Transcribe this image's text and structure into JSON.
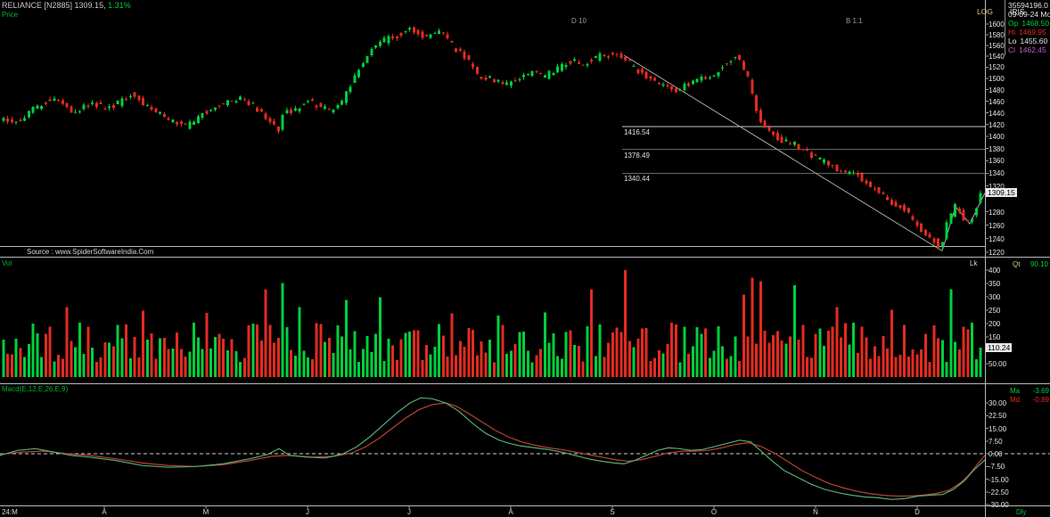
{
  "header": {
    "symbol_line": "RELIANCE [N2885] 1309.15,",
    "change": "1.31%",
    "panel_label": "Price"
  },
  "top_right": {
    "scale_type": "LOG",
    "template": "IRIS",
    "info": {
      "volume": "35594196.0",
      "date": "09-09-24 Mo",
      "op_label": "Op",
      "op": "1468.50",
      "hi_label": "Hi",
      "hi": "1469.95",
      "lo_label": "Lo",
      "lo": "1455.60",
      "cl_label": "Cl",
      "cl": "1462.45"
    }
  },
  "annotations": {
    "left": "D 10",
    "right": "B 1:1"
  },
  "source_line": "Source : www.SpiderSoftwareIndia.Com",
  "price_panel": {
    "last_label": "1309.15"
  },
  "volume_panel": {
    "label": "Vol",
    "unit": "Lk",
    "qt_label": "Qt",
    "qt_value": "90.10",
    "last_label": "110.24"
  },
  "macd_panel": {
    "label": "Macd(E,12,E,26,E,9)",
    "ma_label": "Ma",
    "ma_value": "-3.69",
    "md_label": "Md",
    "md_value": "-0.89"
  },
  "colors": {
    "up": "#00d03c",
    "down": "#e42b20",
    "macd_line": "#55aa77",
    "signal_line": "#b8432f",
    "accent_yellow": "#d8cc7c",
    "magenta": "#c060c0",
    "axis_text": "#e4e4e4",
    "grid": "#b8b8b8",
    "dim_text": "#9a9a9a",
    "green_text": "#00b434"
  },
  "chart_data": {
    "type": "candlestick",
    "title": "RELIANCE [N2885] daily candlestick with volume and MACD",
    "price": {
      "scale": "log",
      "ylim": [
        1220,
        1600
      ],
      "tick_step": 20,
      "ticks": [
        "1600",
        "1580",
        "1560",
        "1540",
        "1520",
        "1500",
        "1480",
        "1460",
        "1440",
        "1420",
        "1400",
        "1380",
        "1360",
        "1340",
        "1320",
        "1280",
        "1260",
        "1240",
        "1220"
      ],
      "last_price": 1309.15,
      "levels": [
        1416.54,
        1378.49,
        1340.44
      ],
      "level_labels": [
        "1416.54",
        "1378.49",
        "1340.44"
      ],
      "anchors": [
        [
          0,
          1432
        ],
        [
          18,
          1420
        ],
        [
          40,
          1447
        ],
        [
          62,
          1468
        ],
        [
          85,
          1442
        ],
        [
          105,
          1456
        ],
        [
          128,
          1448
        ],
        [
          148,
          1472
        ],
        [
          168,
          1452
        ],
        [
          190,
          1430
        ],
        [
          210,
          1415
        ],
        [
          232,
          1442
        ],
        [
          252,
          1456
        ],
        [
          272,
          1466
        ],
        [
          290,
          1450
        ],
        [
          305,
          1424
        ],
        [
          316,
          1408
        ],
        [
          322,
          1452
        ],
        [
          330,
          1438
        ],
        [
          345,
          1462
        ],
        [
          360,
          1452
        ],
        [
          375,
          1444
        ],
        [
          388,
          1462
        ],
        [
          402,
          1512
        ],
        [
          418,
          1552
        ],
        [
          432,
          1568
        ],
        [
          448,
          1578
        ],
        [
          463,
          1592
        ],
        [
          478,
          1574
        ],
        [
          494,
          1590
        ],
        [
          508,
          1562
        ],
        [
          522,
          1544
        ],
        [
          538,
          1506
        ],
        [
          552,
          1500
        ],
        [
          568,
          1488
        ],
        [
          584,
          1496
        ],
        [
          600,
          1512
        ],
        [
          614,
          1504
        ],
        [
          630,
          1520
        ],
        [
          644,
          1532
        ],
        [
          658,
          1526
        ],
        [
          674,
          1540
        ],
        [
          690,
          1544
        ],
        [
          702,
          1536
        ],
        [
          716,
          1518
        ],
        [
          730,
          1500
        ],
        [
          744,
          1490
        ],
        [
          758,
          1478
        ],
        [
          772,
          1488
        ],
        [
          786,
          1498
        ],
        [
          802,
          1506
        ],
        [
          818,
          1528
        ],
        [
          830,
          1540
        ],
        [
          842,
          1498
        ],
        [
          852,
          1438
        ],
        [
          862,
          1412
        ],
        [
          876,
          1396
        ],
        [
          892,
          1388
        ],
        [
          908,
          1374
        ],
        [
          922,
          1362
        ],
        [
          936,
          1350
        ],
        [
          950,
          1344
        ],
        [
          964,
          1338
        ],
        [
          978,
          1322
        ],
        [
          990,
          1310
        ],
        [
          1002,
          1296
        ],
        [
          1015,
          1288
        ],
        [
          1028,
          1264
        ],
        [
          1040,
          1250
        ],
        [
          1052,
          1234
        ],
        [
          1058,
          1228
        ],
        [
          1066,
          1266
        ],
        [
          1074,
          1290
        ],
        [
          1082,
          1274
        ],
        [
          1090,
          1262
        ],
        [
          1097,
          1284
        ],
        [
          1105,
          1306
        ]
      ],
      "trendline": [
        [
          700,
          1542
        ],
        [
          1057,
          1222
        ]
      ],
      "zigzag": [
        [
          1057,
          1222
        ],
        [
          1072,
          1288
        ],
        [
          1088,
          1262
        ],
        [
          1105,
          1309.15
        ]
      ]
    },
    "volume": {
      "unit": "Lk",
      "ylim": [
        0,
        400
      ],
      "ticks": [
        "400",
        "350",
        "300",
        "250",
        "200",
        "150",
        "50.00"
      ],
      "last": 110.24,
      "spikes": [
        [
          76,
          262
        ],
        [
          160,
          248
        ],
        [
          232,
          240
        ],
        [
          296,
          328
        ],
        [
          316,
          352
        ],
        [
          336,
          262
        ],
        [
          388,
          288
        ],
        [
          424,
          298
        ],
        [
          508,
          238
        ],
        [
          560,
          230
        ],
        [
          610,
          242
        ],
        [
          662,
          328
        ],
        [
          700,
          400
        ],
        [
          834,
          308
        ],
        [
          845,
          372
        ],
        [
          852,
          358
        ],
        [
          890,
          344
        ],
        [
          940,
          262
        ],
        [
          1000,
          252
        ],
        [
          1068,
          328
        ]
      ]
    },
    "macd": {
      "params": "E,12,E,26,E,9",
      "ylim": [
        -30,
        30
      ],
      "ticks": [
        "30.00",
        "22.50",
        "15.00",
        "7.50",
        "0.00",
        "-7.50",
        "-15.00",
        "-22.50",
        "-30.00"
      ],
      "macd_line": [
        [
          0,
          -1
        ],
        [
          20,
          2
        ],
        [
          40,
          3
        ],
        [
          60,
          1
        ],
        [
          80,
          -1
        ],
        [
          100,
          -2
        ],
        [
          130,
          -4
        ],
        [
          160,
          -7
        ],
        [
          190,
          -8
        ],
        [
          220,
          -7.5
        ],
        [
          250,
          -6
        ],
        [
          280,
          -3
        ],
        [
          300,
          -0.5
        ],
        [
          313,
          3
        ],
        [
          325,
          -1
        ],
        [
          345,
          -2
        ],
        [
          365,
          -2.5
        ],
        [
          385,
          0
        ],
        [
          400,
          4
        ],
        [
          415,
          10
        ],
        [
          430,
          17
        ],
        [
          445,
          24
        ],
        [
          460,
          30
        ],
        [
          472,
          33
        ],
        [
          485,
          32.5
        ],
        [
          500,
          30
        ],
        [
          515,
          25
        ],
        [
          530,
          18
        ],
        [
          545,
          12
        ],
        [
          560,
          8
        ],
        [
          572,
          6
        ],
        [
          585,
          4.5
        ],
        [
          600,
          3.5
        ],
        [
          615,
          2.5
        ],
        [
          630,
          1
        ],
        [
          645,
          -1
        ],
        [
          660,
          -3
        ],
        [
          675,
          -4.5
        ],
        [
          690,
          -5.5
        ],
        [
          700,
          -6
        ],
        [
          712,
          -4
        ],
        [
          725,
          -1
        ],
        [
          738,
          2
        ],
        [
          750,
          3.5
        ],
        [
          762,
          3
        ],
        [
          775,
          2
        ],
        [
          788,
          2.5
        ],
        [
          800,
          4
        ],
        [
          815,
          6
        ],
        [
          830,
          8
        ],
        [
          842,
          7
        ],
        [
          855,
          1
        ],
        [
          868,
          -5
        ],
        [
          880,
          -10
        ],
        [
          895,
          -14
        ],
        [
          910,
          -18
        ],
        [
          925,
          -21
        ],
        [
          940,
          -23
        ],
        [
          955,
          -24.5
        ],
        [
          970,
          -25.5
        ],
        [
          985,
          -26
        ],
        [
          1000,
          -27
        ],
        [
          1015,
          -26.5
        ],
        [
          1030,
          -25
        ],
        [
          1045,
          -24.5
        ],
        [
          1058,
          -24
        ],
        [
          1070,
          -21
        ],
        [
          1082,
          -16
        ],
        [
          1092,
          -10
        ],
        [
          1100,
          -6
        ],
        [
          1105,
          -3.69
        ]
      ],
      "signal_line": [
        [
          0,
          -0.5
        ],
        [
          25,
          1
        ],
        [
          50,
          1.5
        ],
        [
          75,
          0
        ],
        [
          100,
          -1
        ],
        [
          130,
          -3
        ],
        [
          160,
          -5.5
        ],
        [
          190,
          -7
        ],
        [
          220,
          -7.5
        ],
        [
          250,
          -6.5
        ],
        [
          280,
          -4
        ],
        [
          305,
          -1.5
        ],
        [
          325,
          -1
        ],
        [
          350,
          -2
        ],
        [
          375,
          -1.5
        ],
        [
          395,
          0.5
        ],
        [
          410,
          4
        ],
        [
          425,
          9
        ],
        [
          440,
          15
        ],
        [
          455,
          21
        ],
        [
          470,
          26
        ],
        [
          485,
          29
        ],
        [
          500,
          30
        ],
        [
          512,
          28
        ],
        [
          525,
          24
        ],
        [
          540,
          19
        ],
        [
          555,
          14
        ],
        [
          570,
          10
        ],
        [
          585,
          7
        ],
        [
          600,
          5
        ],
        [
          615,
          3.5
        ],
        [
          630,
          2.5
        ],
        [
          645,
          1
        ],
        [
          660,
          -0.5
        ],
        [
          675,
          -2
        ],
        [
          690,
          -3.5
        ],
        [
          705,
          -4.5
        ],
        [
          720,
          -3.5
        ],
        [
          735,
          -1.5
        ],
        [
          750,
          0.5
        ],
        [
          765,
          1.5
        ],
        [
          780,
          1.5
        ],
        [
          795,
          2
        ],
        [
          810,
          3.5
        ],
        [
          825,
          5.5
        ],
        [
          840,
          6.5
        ],
        [
          855,
          4
        ],
        [
          870,
          0
        ],
        [
          885,
          -5
        ],
        [
          900,
          -10
        ],
        [
          915,
          -14
        ],
        [
          930,
          -17.5
        ],
        [
          945,
          -20
        ],
        [
          960,
          -22
        ],
        [
          975,
          -23.5
        ],
        [
          990,
          -24.5
        ],
        [
          1005,
          -25
        ],
        [
          1020,
          -25
        ],
        [
          1035,
          -24.5
        ],
        [
          1050,
          -23.5
        ],
        [
          1065,
          -21.5
        ],
        [
          1078,
          -17
        ],
        [
          1088,
          -12
        ],
        [
          1097,
          -6
        ],
        [
          1105,
          -0.89
        ]
      ],
      "last_ma": -3.69,
      "last_md": -0.89
    },
    "x_axis": {
      "months": [
        "24:M",
        "A",
        "M",
        "J",
        "J",
        "A",
        "S",
        "O",
        "N",
        "D"
      ],
      "periodicity": "Dly"
    }
  }
}
